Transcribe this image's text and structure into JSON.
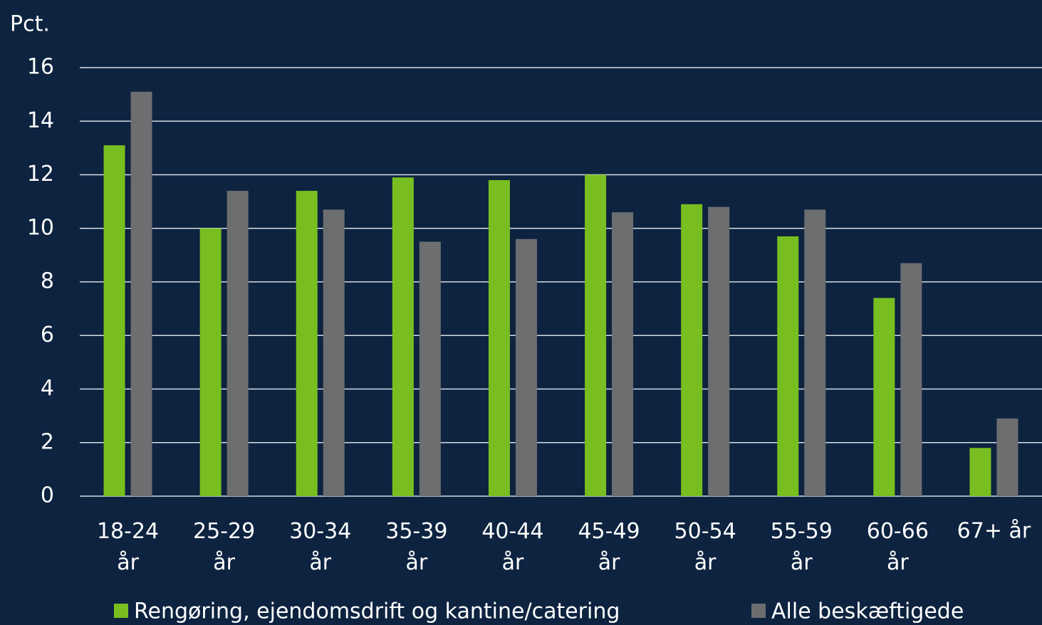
{
  "chart_data": {
    "type": "bar",
    "y_label": "Pct.",
    "categories": [
      "18-24 år",
      "25-29 år",
      "30-34 år",
      "35-39 år",
      "40-44 år",
      "45-49 år",
      "50-54 år",
      "55-59 år",
      "60-66 år",
      "67+ år"
    ],
    "series": [
      {
        "name": "Rengøring, ejendomsdrift og kantine/catering",
        "color": "#78be20",
        "values": [
          13.1,
          10.0,
          11.4,
          11.9,
          11.8,
          12.0,
          10.9,
          9.7,
          7.4,
          1.8
        ]
      },
      {
        "name": "Alle beskæftigede",
        "color": "#6d6e70",
        "values": [
          15.1,
          11.4,
          10.7,
          9.5,
          9.6,
          10.6,
          10.8,
          10.7,
          8.7,
          2.9
        ]
      }
    ],
    "ylim": [
      0,
      16
    ],
    "yticks": [
      0,
      2,
      4,
      6,
      8,
      10,
      12,
      14,
      16
    ],
    "grid": true
  }
}
